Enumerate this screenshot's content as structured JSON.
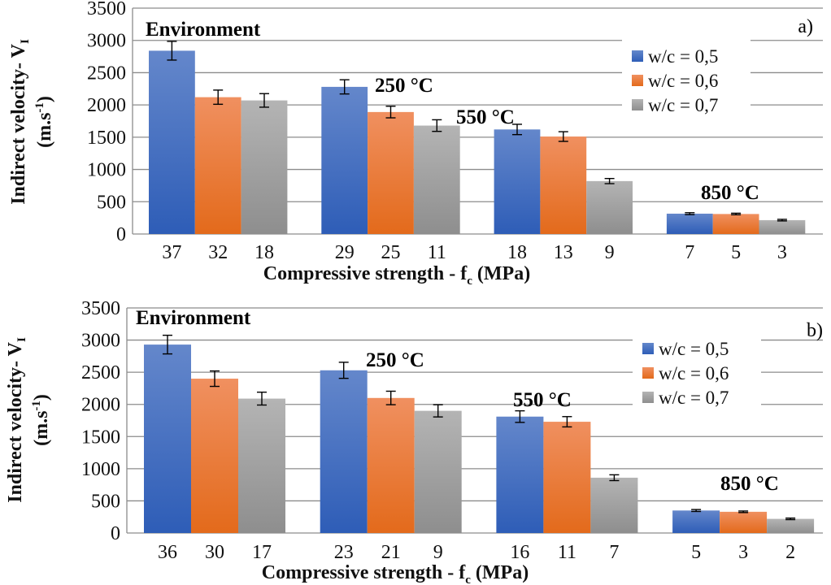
{
  "colors": {
    "series": [
      {
        "top": "#6487cb",
        "bottom": "#2e5db7"
      },
      {
        "top": "#f09060",
        "bottom": "#e36a1b"
      },
      {
        "top": "#b4b4b4",
        "bottom": "#8e8e8e"
      }
    ]
  },
  "chart_data": [
    {
      "type": "bar",
      "panel_label": "a)",
      "ylabel_line1": "Indirect velocity- V",
      "ylabel_sub": "I",
      "ylabel_line2_pre": "(m.s",
      "ylabel_line2_sup": "-1",
      "ylabel_line2_post": ")",
      "xlabel_pre": "Compressive strength - f",
      "xlabel_sub": "c",
      "xlabel_post": " (MPa)",
      "ylim": [
        0,
        3500
      ],
      "yticks": [
        0,
        500,
        1000,
        1500,
        2000,
        2500,
        3000,
        3500
      ],
      "grid": true,
      "legend_position": "top-right",
      "legend": [
        "w/c = 0,5",
        "w/c = 0,6",
        "w/c = 0,7"
      ],
      "groups": [
        "Environment",
        "250 °C",
        "550 °C",
        "850 °C"
      ],
      "categories": [
        [
          "37",
          "32",
          "18"
        ],
        [
          "29",
          "25",
          "11"
        ],
        [
          "18",
          "13",
          "9"
        ],
        [
          "7",
          "5",
          "3"
        ]
      ],
      "series": [
        {
          "name": "w/c = 0,5",
          "values": [
            2840,
            2280,
            1620,
            315
          ],
          "errors": [
            145,
            110,
            80,
            15
          ]
        },
        {
          "name": "w/c = 0,6",
          "values": [
            2120,
            1890,
            1510,
            310
          ],
          "errors": [
            110,
            90,
            75,
            12
          ]
        },
        {
          "name": "w/c = 0,7",
          "values": [
            2070,
            1680,
            820,
            215
          ],
          "errors": [
            105,
            90,
            40,
            12
          ]
        }
      ]
    },
    {
      "type": "bar",
      "panel_label": "b)",
      "ylabel_line1": "Indirect velocity- V",
      "ylabel_sub": "I",
      "ylabel_line2_pre": "(m.s",
      "ylabel_line2_sup": "-1",
      "ylabel_line2_post": ")",
      "xlabel_pre": "Compressive strength - f",
      "xlabel_sub": "c",
      "xlabel_post": " (MPa)",
      "ylim": [
        0,
        3500
      ],
      "yticks": [
        0,
        500,
        1000,
        1500,
        2000,
        2500,
        3000,
        3500
      ],
      "grid": true,
      "legend_position": "top-right",
      "legend": [
        "w/c = 0,5",
        "w/c = 0,6",
        "w/c = 0,7"
      ],
      "groups": [
        "Environment",
        "250 °C",
        "550 °C",
        "850 °C"
      ],
      "categories": [
        [
          "36",
          "30",
          "17"
        ],
        [
          "23",
          "21",
          "9"
        ],
        [
          "16",
          "11",
          "7"
        ],
        [
          "5",
          "3",
          "2"
        ]
      ],
      "series": [
        {
          "name": "w/c = 0,5",
          "values": [
            2930,
            2530,
            1810,
            350
          ],
          "errors": [
            145,
            125,
            90,
            15
          ]
        },
        {
          "name": "w/c = 0,6",
          "values": [
            2400,
            2100,
            1730,
            330
          ],
          "errors": [
            120,
            105,
            80,
            12
          ]
        },
        {
          "name": "w/c = 0,7",
          "values": [
            2090,
            1900,
            860,
            220
          ],
          "errors": [
            100,
            95,
            45,
            12
          ]
        }
      ]
    }
  ]
}
